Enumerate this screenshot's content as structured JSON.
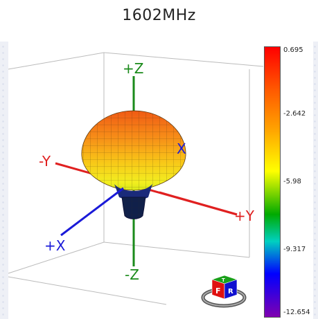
{
  "title": "1602MHz",
  "axes": {
    "plus_z": "+Z",
    "minus_z": "-Z",
    "minus_y": "-Y",
    "plus_y": "+Y",
    "plus_x": "+X",
    "x_back": "X"
  },
  "colorbar": {
    "labels": [
      "0.695",
      "-2.642",
      "-5.98",
      "-9.317",
      "-12.654"
    ],
    "colors": [
      "#ff0000",
      "#ffa000",
      "#ffff00",
      "#00aa00",
      "#0000ff",
      "#8000b0"
    ]
  },
  "orientation_cube": {
    "front": "F",
    "right": "R",
    "top": "T"
  }
}
